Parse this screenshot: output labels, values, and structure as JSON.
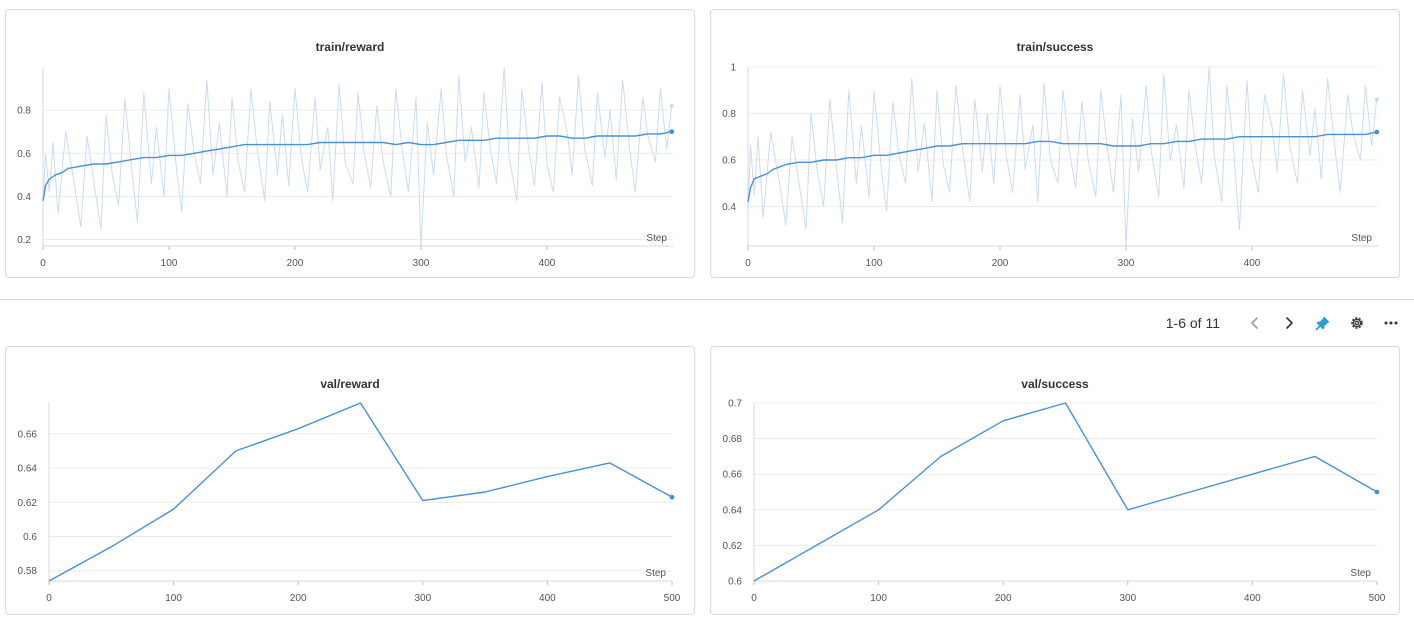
{
  "pager": {
    "label": "1-6 of 11"
  },
  "toolbar": {
    "icons": [
      "chevron-left-icon",
      "chevron-right-icon",
      "pin-icon",
      "gear-icon",
      "more-icon"
    ]
  },
  "colors": {
    "line": "#4a90d9",
    "raw": "#c9dcf2",
    "accent": "#2b9bd6"
  },
  "chart_data": [
    {
      "type": "line",
      "title": "train/reward",
      "xlabel": "Step",
      "xlim": [
        0,
        500
      ],
      "ylim": [
        0.17,
        1.0
      ],
      "xticks": [
        0,
        100,
        200,
        300,
        400
      ],
      "yticks": [
        0.2,
        0.4,
        0.6,
        0.8
      ],
      "series": [
        {
          "style": "raw",
          "x": [
            0,
            2,
            5,
            8,
            12,
            18,
            25,
            30,
            35,
            40,
            46,
            50,
            55,
            60,
            65,
            70,
            75,
            80,
            86,
            90,
            96,
            100,
            106,
            110,
            115,
            120,
            125,
            130,
            135,
            140,
            146,
            150,
            155,
            160,
            165,
            170,
            176,
            180,
            186,
            190,
            195,
            200,
            205,
            210,
            216,
            220,
            226,
            230,
            235,
            240,
            246,
            250,
            255,
            260,
            265,
            270,
            276,
            280,
            285,
            290,
            296,
            300,
            305,
            310,
            316,
            320,
            326,
            330,
            335,
            340,
            346,
            350,
            355,
            360,
            366,
            370,
            376,
            380,
            385,
            390,
            396,
            400,
            405,
            410,
            416,
            420,
            425,
            430,
            436,
            440,
            446,
            450,
            455,
            460,
            466,
            470,
            476,
            480,
            486,
            490,
            495,
            499
          ],
          "y": [
            0.35,
            0.6,
            0.42,
            0.65,
            0.32,
            0.7,
            0.45,
            0.26,
            0.68,
            0.48,
            0.25,
            0.78,
            0.5,
            0.36,
            0.85,
            0.55,
            0.28,
            0.88,
            0.46,
            0.72,
            0.4,
            0.9,
            0.52,
            0.33,
            0.83,
            0.6,
            0.46,
            0.94,
            0.5,
            0.74,
            0.4,
            0.86,
            0.56,
            0.42,
            0.9,
            0.62,
            0.38,
            0.84,
            0.5,
            0.78,
            0.45,
            0.9,
            0.58,
            0.42,
            0.86,
            0.52,
            0.72,
            0.38,
            0.92,
            0.55,
            0.46,
            0.88,
            0.6,
            0.44,
            0.82,
            0.56,
            0.4,
            0.9,
            0.62,
            0.42,
            0.86,
            0.17,
            0.74,
            0.5,
            0.9,
            0.6,
            0.4,
            0.96,
            0.56,
            0.72,
            0.44,
            0.88,
            0.62,
            0.46,
            1.0,
            0.58,
            0.38,
            0.9,
            0.64,
            0.45,
            0.93,
            0.55,
            0.42,
            0.86,
            0.7,
            0.5,
            0.96,
            0.62,
            0.45,
            0.88,
            0.58,
            0.8,
            0.48,
            0.94,
            0.6,
            0.42,
            0.86,
            0.68,
            0.56,
            0.9,
            0.62,
            0.82
          ]
        },
        {
          "style": "smoothed",
          "x": [
            0,
            2,
            5,
            10,
            15,
            20,
            30,
            40,
            50,
            60,
            70,
            80,
            90,
            100,
            110,
            120,
            130,
            140,
            150,
            160,
            170,
            180,
            190,
            200,
            210,
            220,
            230,
            240,
            250,
            260,
            270,
            280,
            290,
            300,
            310,
            320,
            330,
            340,
            350,
            360,
            370,
            380,
            390,
            400,
            410,
            420,
            430,
            440,
            450,
            460,
            470,
            480,
            490,
            499
          ],
          "y": [
            0.38,
            0.45,
            0.48,
            0.5,
            0.51,
            0.53,
            0.54,
            0.55,
            0.55,
            0.56,
            0.57,
            0.58,
            0.58,
            0.59,
            0.59,
            0.6,
            0.61,
            0.62,
            0.63,
            0.64,
            0.64,
            0.64,
            0.64,
            0.64,
            0.64,
            0.65,
            0.65,
            0.65,
            0.65,
            0.65,
            0.65,
            0.64,
            0.65,
            0.64,
            0.64,
            0.65,
            0.66,
            0.66,
            0.66,
            0.67,
            0.67,
            0.67,
            0.67,
            0.68,
            0.68,
            0.67,
            0.67,
            0.68,
            0.68,
            0.68,
            0.68,
            0.69,
            0.69,
            0.7
          ]
        }
      ]
    },
    {
      "type": "line",
      "title": "train/success",
      "xlabel": "Step",
      "xlim": [
        0,
        500
      ],
      "ylim": [
        0.23,
        1.0
      ],
      "xticks": [
        0,
        100,
        200,
        300,
        400
      ],
      "yticks": [
        0.4,
        0.6,
        0.8,
        1
      ],
      "series": [
        {
          "style": "raw",
          "x": [
            0,
            2,
            5,
            8,
            12,
            18,
            25,
            30,
            35,
            40,
            46,
            50,
            55,
            60,
            65,
            70,
            75,
            80,
            86,
            90,
            96,
            100,
            106,
            110,
            115,
            120,
            125,
            130,
            135,
            140,
            146,
            150,
            155,
            160,
            165,
            170,
            176,
            180,
            186,
            190,
            195,
            200,
            205,
            210,
            216,
            220,
            226,
            230,
            235,
            240,
            246,
            250,
            255,
            260,
            265,
            270,
            276,
            280,
            285,
            290,
            296,
            300,
            305,
            310,
            316,
            320,
            326,
            330,
            335,
            340,
            346,
            350,
            355,
            360,
            366,
            370,
            376,
            380,
            385,
            390,
            396,
            400,
            405,
            410,
            416,
            420,
            425,
            430,
            436,
            440,
            446,
            450,
            455,
            460,
            466,
            470,
            476,
            480,
            486,
            490,
            495,
            499
          ],
          "y": [
            0.38,
            0.66,
            0.45,
            0.7,
            0.35,
            0.72,
            0.5,
            0.32,
            0.7,
            0.52,
            0.3,
            0.8,
            0.55,
            0.4,
            0.86,
            0.58,
            0.33,
            0.9,
            0.5,
            0.75,
            0.44,
            0.9,
            0.55,
            0.38,
            0.85,
            0.62,
            0.5,
            0.95,
            0.55,
            0.76,
            0.42,
            0.9,
            0.58,
            0.46,
            0.92,
            0.66,
            0.42,
            0.86,
            0.55,
            0.8,
            0.5,
            0.92,
            0.62,
            0.46,
            0.88,
            0.56,
            0.75,
            0.42,
            0.93,
            0.6,
            0.5,
            0.9,
            0.64,
            0.48,
            0.85,
            0.6,
            0.44,
            0.9,
            0.66,
            0.46,
            0.88,
            0.23,
            0.78,
            0.55,
            0.92,
            0.64,
            0.44,
            0.97,
            0.6,
            0.75,
            0.48,
            0.9,
            0.66,
            0.5,
            1.0,
            0.62,
            0.42,
            0.92,
            0.68,
            0.3,
            0.94,
            0.6,
            0.46,
            0.88,
            0.74,
            0.55,
            0.97,
            0.66,
            0.5,
            0.9,
            0.62,
            0.82,
            0.52,
            0.95,
            0.64,
            0.46,
            0.88,
            0.72,
            0.6,
            0.92,
            0.66,
            0.86
          ]
        },
        {
          "style": "smoothed",
          "x": [
            0,
            2,
            5,
            10,
            15,
            20,
            30,
            40,
            50,
            60,
            70,
            80,
            90,
            100,
            110,
            120,
            130,
            140,
            150,
            160,
            170,
            180,
            190,
            200,
            210,
            220,
            230,
            240,
            250,
            260,
            270,
            280,
            290,
            300,
            310,
            320,
            330,
            340,
            350,
            360,
            370,
            380,
            390,
            400,
            410,
            420,
            430,
            440,
            450,
            460,
            470,
            480,
            490,
            499
          ],
          "y": [
            0.42,
            0.48,
            0.52,
            0.53,
            0.54,
            0.56,
            0.58,
            0.59,
            0.59,
            0.6,
            0.6,
            0.61,
            0.61,
            0.62,
            0.62,
            0.63,
            0.64,
            0.65,
            0.66,
            0.66,
            0.67,
            0.67,
            0.67,
            0.67,
            0.67,
            0.67,
            0.68,
            0.68,
            0.67,
            0.67,
            0.67,
            0.67,
            0.66,
            0.66,
            0.66,
            0.67,
            0.67,
            0.68,
            0.68,
            0.69,
            0.69,
            0.69,
            0.7,
            0.7,
            0.7,
            0.7,
            0.7,
            0.7,
            0.7,
            0.71,
            0.71,
            0.71,
            0.71,
            0.72
          ]
        }
      ]
    },
    {
      "type": "line",
      "title": "val/reward",
      "xlabel": "Step",
      "xlim": [
        0,
        500
      ],
      "ylim": [
        0.574,
        0.678
      ],
      "xticks": [
        0,
        100,
        200,
        300,
        400,
        500
      ],
      "yticks": [
        0.58,
        0.6,
        0.62,
        0.64,
        0.66
      ],
      "series": [
        {
          "style": "line",
          "x": [
            0,
            50,
            100,
            150,
            200,
            250,
            300,
            350,
            400,
            450,
            500
          ],
          "y": [
            0.574,
            0.594,
            0.616,
            0.65,
            0.663,
            0.678,
            0.621,
            0.626,
            0.635,
            0.643,
            0.623
          ]
        }
      ]
    },
    {
      "type": "line",
      "title": "val/success",
      "xlabel": "Step",
      "xlim": [
        0,
        500
      ],
      "ylim": [
        0.6,
        0.7
      ],
      "xticks": [
        0,
        100,
        200,
        300,
        400,
        500
      ],
      "yticks": [
        0.6,
        0.62,
        0.64,
        0.66,
        0.68,
        0.7
      ],
      "series": [
        {
          "style": "line",
          "x": [
            0,
            50,
            100,
            150,
            200,
            250,
            300,
            350,
            400,
            450,
            500
          ],
          "y": [
            0.6,
            0.62,
            0.64,
            0.67,
            0.69,
            0.7,
            0.64,
            0.65,
            0.66,
            0.67,
            0.65
          ]
        }
      ]
    }
  ]
}
